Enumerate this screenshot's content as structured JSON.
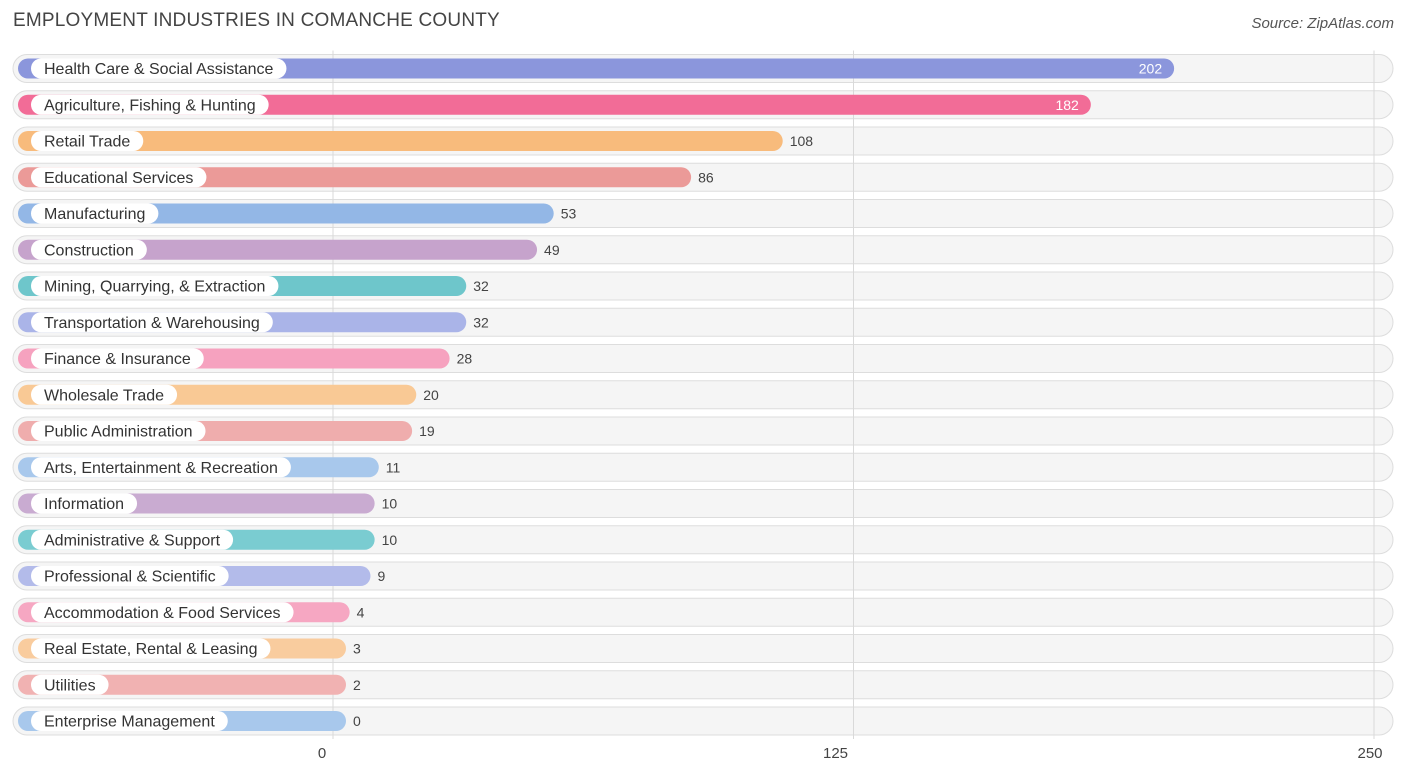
{
  "title": "EMPLOYMENT INDUSTRIES IN COMANCHE COUNTY",
  "source": "Source: ZipAtlas.com",
  "chart_data": {
    "type": "bar",
    "orientation": "horizontal",
    "title": "EMPLOYMENT INDUSTRIES IN COMANCHE COUNTY",
    "xlabel": "",
    "ylabel": "",
    "xlim": [
      0,
      250
    ],
    "ticks": [
      0,
      125,
      250
    ],
    "tick_labels": [
      "0",
      "125",
      "250"
    ],
    "grid": true,
    "categories": [
      "Health Care & Social Assistance",
      "Agriculture, Fishing & Hunting",
      "Retail Trade",
      "Educational Services",
      "Manufacturing",
      "Construction",
      "Mining, Quarrying, & Extraction",
      "Transportation & Warehousing",
      "Finance & Insurance",
      "Wholesale Trade",
      "Public Administration",
      "Arts, Entertainment & Recreation",
      "Information",
      "Administrative & Support",
      "Professional & Scientific",
      "Accommodation & Food Services",
      "Real Estate, Rental & Leasing",
      "Utilities",
      "Enterprise Management"
    ],
    "values": [
      202,
      182,
      108,
      86,
      53,
      49,
      32,
      32,
      28,
      20,
      19,
      11,
      10,
      10,
      9,
      4,
      3,
      2,
      0
    ],
    "colors": [
      "#8b96dc",
      "#f26c97",
      "#f8bb7c",
      "#eb9a98",
      "#93b7e6",
      "#c6a3cc",
      "#6ec6cb",
      "#aab4e8",
      "#f6a2bf",
      "#f9c995",
      "#efadad",
      "#a8c8ec",
      "#c9abd1",
      "#7accd1",
      "#b3bbea",
      "#f6a7c2",
      "#f9cc9e",
      "#f1b2b2",
      "#a8c8ec"
    ]
  }
}
